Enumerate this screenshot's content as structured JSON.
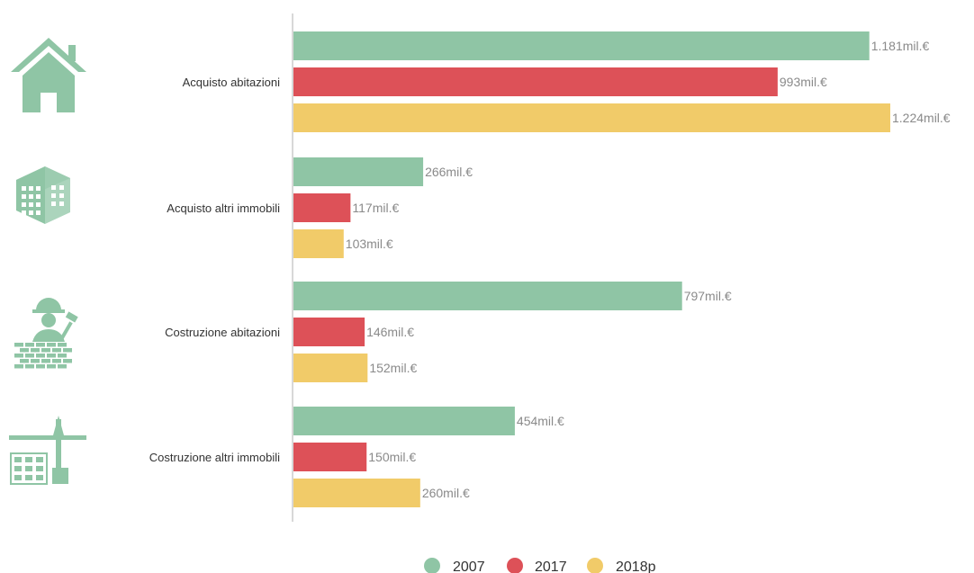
{
  "chart_data": {
    "type": "bar",
    "orientation": "horizontal",
    "categories": [
      "Acquisto abitazioni",
      "Acquisto altri immobili",
      "Costruzione abitazioni",
      "Costruzione altri immobili"
    ],
    "category_icons": [
      "house-icon",
      "office-building-icon",
      "construction-worker-icon",
      "crane-building-icon"
    ],
    "series": [
      {
        "name": "2007",
        "color": "#8fc5a5",
        "values": [
          1181,
          266,
          797,
          454
        ],
        "labels": [
          "1.181mil.€",
          "266mil.€",
          "797mil.€",
          "454mil.€"
        ]
      },
      {
        "name": "2017",
        "color": "#dd5158",
        "values": [
          993,
          117,
          146,
          150
        ],
        "labels": [
          "993mil.€",
          "117mil.€",
          "146mil.€",
          "150mil.€"
        ]
      },
      {
        "name": "2018p",
        "color": "#f1cb69",
        "values": [
          1224,
          103,
          152,
          260
        ],
        "labels": [
          "1.224mil.€",
          "103mil.€",
          "152mil.€",
          "260mil.€"
        ]
      }
    ],
    "xlim": [
      0,
      1224
    ],
    "grid": false,
    "legend_position": "bottom-center",
    "icon_color": "#8fc5a5"
  }
}
